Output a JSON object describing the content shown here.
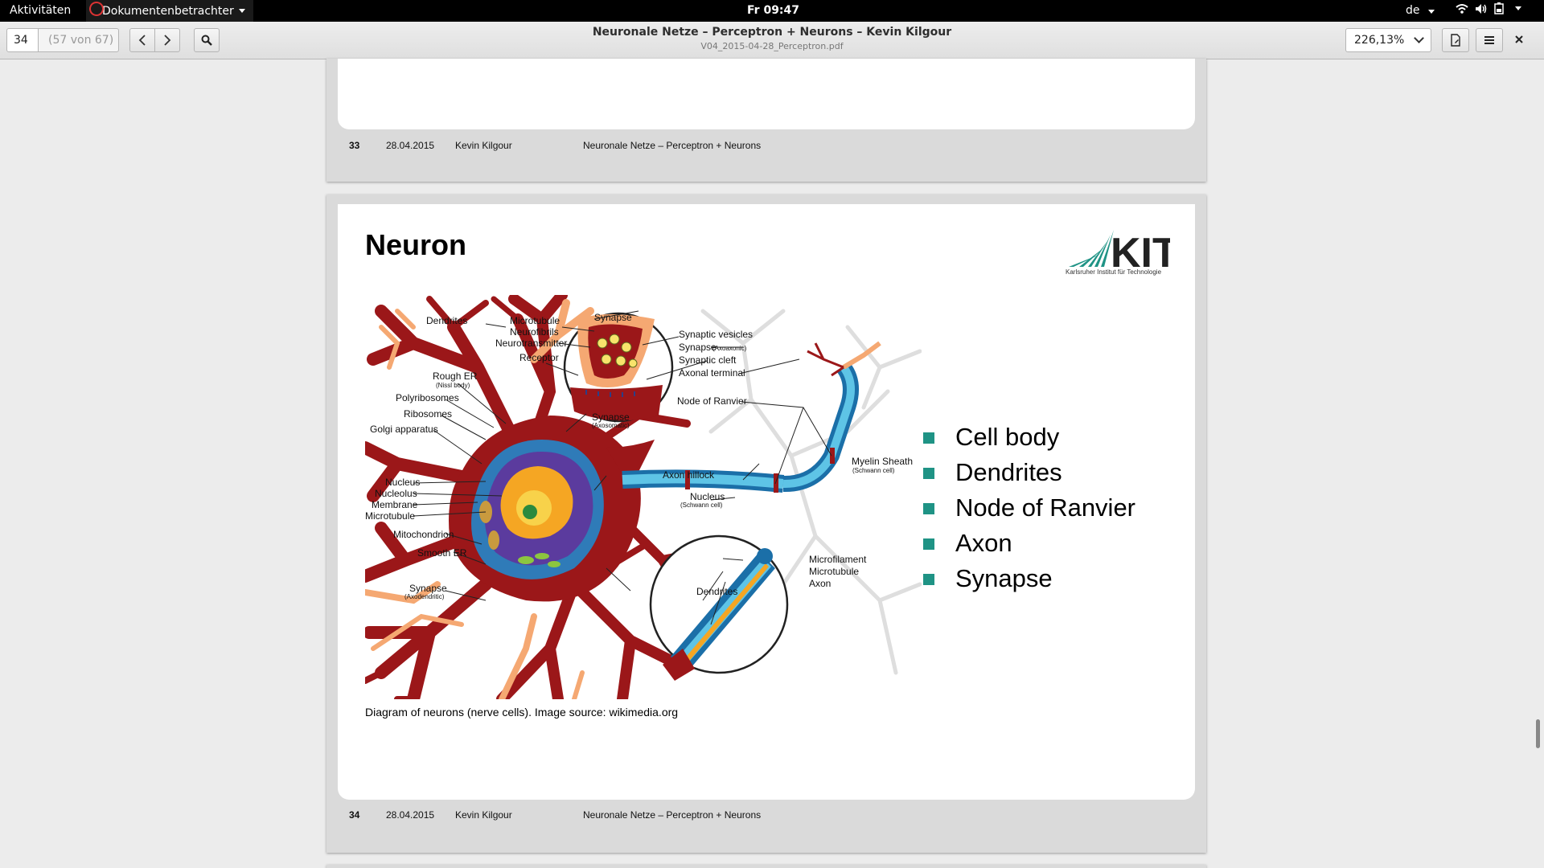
{
  "topbar": {
    "activities": "Aktivitäten",
    "app_name": "Dokumentenbetrachter",
    "clock": "Fr 09:47",
    "language": "de",
    "icons": [
      "wifi-icon",
      "volume-icon",
      "battery-icon"
    ]
  },
  "header": {
    "page_number": "34",
    "page_count": "(57 von 67)",
    "title": "Neuronale Netze – Perceptron + Neurons – Kevin Kilgour",
    "subtitle": "V04_2015-04-28_Perceptron.pdf",
    "zoom": "226,13%",
    "icons": [
      "chevron-left-icon",
      "chevron-right-icon",
      "search-icon",
      "document-icon",
      "menu-icon",
      "close-icon"
    ]
  },
  "page33": {
    "footer": {
      "number": "33",
      "date": "28.04.2015",
      "author": "Kevin Kilgour",
      "title": "Neuronale Netze – Perceptron + Neurons"
    }
  },
  "page34": {
    "slide_title": "Neuron",
    "logo_text": "KIT",
    "logo_tagline": "Karlsruher Institut für Technologie",
    "caption": "Diagram of neurons (nerve cells). Image source: wikimedia.org",
    "bullets": [
      "Cell body",
      "Dendrites",
      "Node of Ranvier",
      "Axon",
      "Synapse"
    ],
    "bullet_color": "#1f9385",
    "diagram_labels": {
      "dendrites_top": "Dendrites",
      "microtubule": "Microtubule",
      "neurofibrils": "Neurofibrils",
      "neurotransmitter": "Neurotransmitter",
      "receptor": "Receptor",
      "synapse_top": "Synapse",
      "synaptic_vesicles": "Synaptic vesicles",
      "synapse_axoaxonic": "Synapse",
      "axoaxonic": "(Axoaxonic)",
      "synaptic_cleft": "Synaptic cleft",
      "axonal_terminal": "Axonal terminal",
      "node_of_ranvier": "Node of Ranvier",
      "rough_er": "Rough ER",
      "nissl_body": "(Nissl body)",
      "polyribosomes": "Polyribosomes",
      "ribosomes": "Ribosomes",
      "golgi": "Golgi apparatus",
      "synapse_axosomatic": "Synapse",
      "axosomatic": "(Axosomatic)",
      "axon_hillock": "Axon hillock",
      "myelin_sheath": "Myelin Sheath",
      "schwann_cell": "(Schwann cell)",
      "nucleus": "Nucleus",
      "nucleolus": "Nucleolus",
      "membrane": "Membrane",
      "microtubule_2": "Microtubule",
      "nucleus_schwann": "Nucleus",
      "schwann_cell_2": "(Schwann cell)",
      "mitochondrion": "Mitochondrion",
      "smooth_er": "Smooth ER",
      "microfilament": "Microfilament",
      "microtubule_3": "Microtubule",
      "axon": "Axon",
      "synapse_axodendritic": "Synapse",
      "axodendritic": "(Axodendritic)",
      "dendrites_bottom": "Dendrites"
    },
    "footer": {
      "number": "34",
      "date": "28.04.2015",
      "author": "Kevin Kilgour",
      "title": "Neuronale Netze – Perceptron + Neurons"
    }
  }
}
